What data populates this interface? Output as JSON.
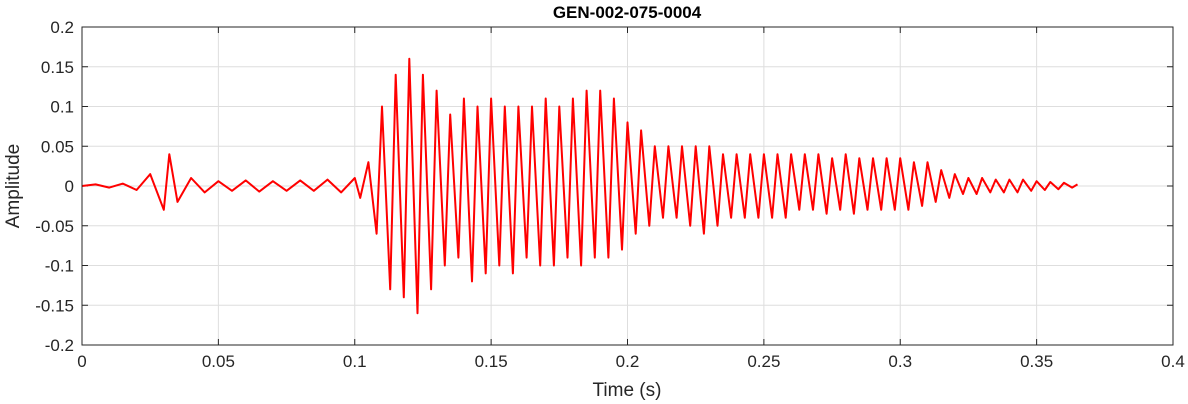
{
  "chart_data": {
    "type": "line",
    "title": "GEN-002-075-0004",
    "xlabel": "Time (s)",
    "ylabel": "Amplitude",
    "xlim": [
      0,
      0.4
    ],
    "ylim": [
      -0.2,
      0.2
    ],
    "x_ticks": [
      0,
      0.05,
      0.1,
      0.15,
      0.2,
      0.25,
      0.3,
      0.35,
      0.4
    ],
    "x_tick_labels": [
      "0",
      "0.05",
      "0.1",
      "0.15",
      "0.2",
      "0.25",
      "0.3",
      "0.35",
      "0.4"
    ],
    "y_ticks": [
      -0.2,
      -0.15,
      -0.1,
      -0.05,
      0,
      0.05,
      0.1,
      0.15,
      0.2
    ],
    "y_tick_labels": [
      "-0.2",
      "-0.15",
      "-0.1",
      "-0.05",
      "0",
      "0.05",
      "0.1",
      "0.15",
      "0.2"
    ],
    "grid": true,
    "series": [
      {
        "color": "#ff0000",
        "x": [
          0,
          0.005,
          0.01,
          0.015,
          0.02,
          0.025,
          0.03,
          0.032,
          0.035,
          0.04,
          0.045,
          0.05,
          0.055,
          0.06,
          0.065,
          0.07,
          0.075,
          0.08,
          0.085,
          0.09,
          0.095,
          0.1,
          0.102,
          0.105,
          0.108,
          0.11,
          0.113,
          0.115,
          0.118,
          0.12,
          0.123,
          0.125,
          0.128,
          0.13,
          0.133,
          0.135,
          0.138,
          0.14,
          0.143,
          0.145,
          0.148,
          0.15,
          0.153,
          0.155,
          0.158,
          0.16,
          0.163,
          0.165,
          0.168,
          0.17,
          0.173,
          0.175,
          0.178,
          0.18,
          0.183,
          0.185,
          0.188,
          0.19,
          0.193,
          0.195,
          0.198,
          0.2,
          0.203,
          0.205,
          0.208,
          0.21,
          0.213,
          0.215,
          0.218,
          0.22,
          0.223,
          0.225,
          0.228,
          0.23,
          0.233,
          0.235,
          0.238,
          0.24,
          0.243,
          0.245,
          0.248,
          0.25,
          0.253,
          0.255,
          0.258,
          0.26,
          0.263,
          0.265,
          0.268,
          0.27,
          0.273,
          0.275,
          0.278,
          0.28,
          0.283,
          0.285,
          0.288,
          0.29,
          0.293,
          0.295,
          0.298,
          0.3,
          0.303,
          0.305,
          0.308,
          0.31,
          0.313,
          0.315,
          0.318,
          0.32,
          0.323,
          0.325,
          0.328,
          0.33,
          0.333,
          0.335,
          0.338,
          0.34,
          0.343,
          0.345,
          0.348,
          0.35,
          0.353,
          0.355,
          0.358,
          0.36,
          0.363,
          0.365
        ],
        "y": [
          0,
          0.002,
          -0.002,
          0.003,
          -0.005,
          0.015,
          -0.03,
          0.04,
          -0.02,
          0.01,
          -0.008,
          0.006,
          -0.006,
          0.007,
          -0.007,
          0.006,
          -0.006,
          0.007,
          -0.006,
          0.008,
          -0.008,
          0.01,
          -0.015,
          0.03,
          -0.06,
          0.1,
          -0.13,
          0.14,
          -0.14,
          0.16,
          -0.16,
          0.14,
          -0.13,
          0.12,
          -0.1,
          0.09,
          -0.09,
          0.11,
          -0.12,
          0.1,
          -0.11,
          0.11,
          -0.1,
          0.1,
          -0.11,
          0.1,
          -0.09,
          0.1,
          -0.1,
          0.11,
          -0.1,
          0.1,
          -0.09,
          0.11,
          -0.1,
          0.12,
          -0.09,
          0.12,
          -0.09,
          0.11,
          -0.08,
          0.08,
          -0.06,
          0.07,
          -0.05,
          0.05,
          -0.04,
          0.05,
          -0.04,
          0.05,
          -0.05,
          0.05,
          -0.06,
          0.05,
          -0.05,
          0.04,
          -0.04,
          0.04,
          -0.04,
          0.04,
          -0.04,
          0.04,
          -0.04,
          0.04,
          -0.04,
          0.04,
          -0.03,
          0.04,
          -0.03,
          0.04,
          -0.035,
          0.035,
          -0.03,
          0.04,
          -0.035,
          0.035,
          -0.03,
          0.035,
          -0.03,
          0.035,
          -0.03,
          0.035,
          -0.03,
          0.03,
          -0.025,
          0.03,
          -0.02,
          0.02,
          -0.015,
          0.015,
          -0.01,
          0.01,
          -0.01,
          0.01,
          -0.008,
          0.008,
          -0.008,
          0.008,
          -0.008,
          0.008,
          -0.006,
          0.006,
          -0.005,
          0.005,
          -0.004,
          0.004,
          -0.002,
          0.002
        ]
      }
    ]
  }
}
